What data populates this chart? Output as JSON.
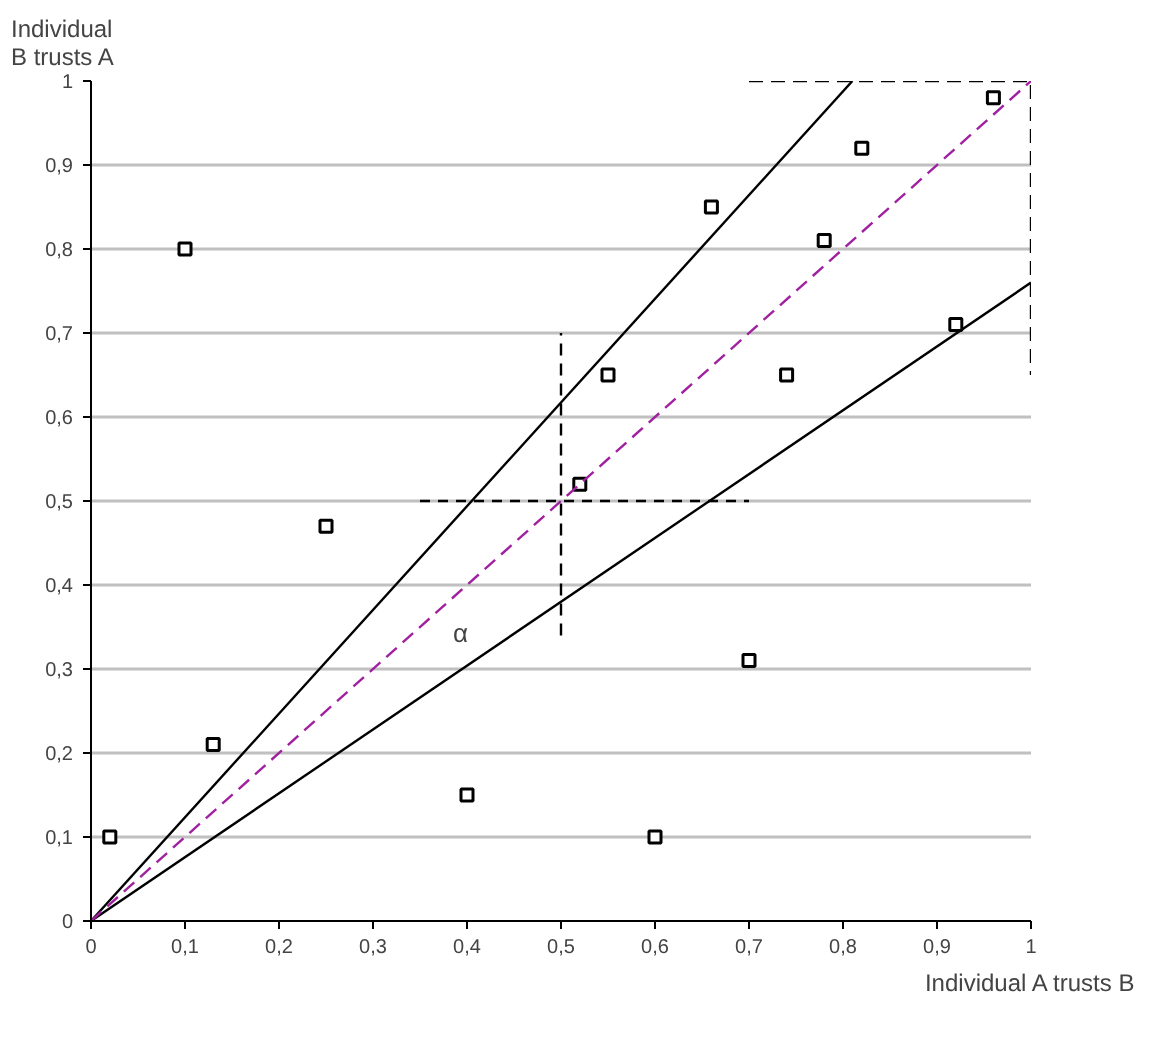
{
  "chart_data": {
    "type": "scatter",
    "xlabel": "Individual A trusts B",
    "ylabel": "Individual\nB trusts A",
    "xlim": [
      0,
      1
    ],
    "ylim": [
      0,
      1
    ],
    "xticks": [
      0,
      {
        "value": 0.1,
        "label": "0,1"
      },
      {
        "value": 0.2,
        "label": "0,2"
      },
      {
        "value": 0.3,
        "label": "0,3"
      },
      {
        "value": 0.4,
        "label": "0,4"
      },
      {
        "value": 0.5,
        "label": "0,5"
      },
      {
        "value": 0.6,
        "label": "0,6"
      },
      {
        "value": 0.7,
        "label": "0,7"
      },
      {
        "value": 0.8,
        "label": "0,8"
      },
      {
        "value": 0.9,
        "label": "0,9"
      },
      1
    ],
    "yticks": [
      0,
      {
        "value": 0.1,
        "label": "0,1"
      },
      {
        "value": 0.2,
        "label": "0,2"
      },
      {
        "value": 0.3,
        "label": "0,3"
      },
      {
        "value": 0.4,
        "label": "0,4"
      },
      {
        "value": 0.5,
        "label": "0,5"
      },
      {
        "value": 0.6,
        "label": "0,6"
      },
      {
        "value": 0.7,
        "label": "0,7"
      },
      {
        "value": 0.8,
        "label": "0,8"
      },
      {
        "value": 0.9,
        "label": "0,9"
      },
      1
    ],
    "grid": "y",
    "marker": "square",
    "series": [
      {
        "color": "#000000",
        "x": [
          0.02,
          0.1,
          0.13,
          0.25,
          0.4,
          0.52,
          0.55,
          0.6,
          0.66,
          0.7,
          0.74,
          0.78,
          0.82,
          0.92,
          0.96
        ],
        "values": [
          0.1,
          0.8,
          0.21,
          0.47,
          0.15,
          0.52,
          0.65,
          0.1,
          0.85,
          0.31,
          0.65,
          0.81,
          0.92,
          0.71,
          0.98
        ]
      },
      {
        "type": "line",
        "marker": "none",
        "color": "#000000",
        "line_style": "solid",
        "x": [
          0,
          0.81
        ],
        "values": [
          0,
          1
        ]
      },
      {
        "type": "line",
        "marker": "none",
        "color": "#000000",
        "line_style": "solid",
        "x": [
          0,
          1
        ],
        "values": [
          0,
          0.76
        ]
      },
      {
        "type": "line",
        "marker": "none",
        "color": "#a020a0",
        "line_style": "dashed",
        "x": [
          0,
          1
        ],
        "values": [
          0,
          1
        ]
      },
      {
        "type": "line",
        "marker": "none",
        "color": "#000000",
        "line_style": "dashed",
        "x": [
          0.5,
          0.5
        ],
        "values": [
          0.34,
          0.7
        ]
      },
      {
        "type": "line",
        "marker": "none",
        "color": "#000000",
        "line_style": "dashed",
        "x": [
          0.35,
          0.7
        ],
        "values": [
          0.5,
          0.5
        ]
      },
      {
        "type": "line",
        "marker": "none",
        "color": "#000000",
        "line_style": "dashed",
        "x": [
          0.7,
          1,
          1
        ],
        "values": [
          1,
          1,
          0.65
        ]
      }
    ],
    "annotations": [
      "α"
    ]
  }
}
